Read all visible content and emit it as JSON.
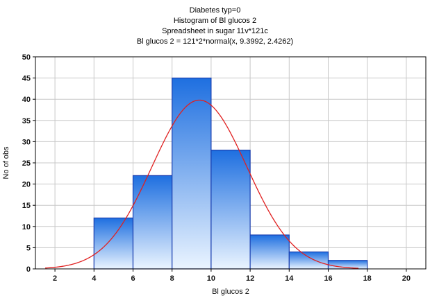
{
  "titles": {
    "line1": "Diabetes typ=0",
    "line2": "Histogram of Bl glucos 2",
    "line3": "Spreadsheet in sugar 11v*121c",
    "line4": "Bl glucos 2 = 121*2*normal(x, 9.3992, 2.4262)"
  },
  "chart_data": {
    "type": "bar",
    "title": "Histogram of Bl glucos 2",
    "xlabel": "Bl glucos 2",
    "ylabel": "No of obs",
    "bins": [
      {
        "from": 4,
        "to": 6,
        "count": 12
      },
      {
        "from": 6,
        "to": 8,
        "count": 22
      },
      {
        "from": 8,
        "to": 10,
        "count": 45
      },
      {
        "from": 10,
        "to": 12,
        "count": 28
      },
      {
        "from": 12,
        "to": 14,
        "count": 8
      },
      {
        "from": 14,
        "to": 16,
        "count": 4
      },
      {
        "from": 16,
        "to": 18,
        "count": 2
      }
    ],
    "normal_fit": {
      "n": 121,
      "bin_width": 2,
      "mean": 9.3992,
      "sd": 2.4262
    },
    "xlim": [
      1,
      21
    ],
    "ylim": [
      0,
      50
    ],
    "xticks": [
      2,
      4,
      6,
      8,
      10,
      12,
      14,
      16,
      18,
      20
    ],
    "yticks": [
      0,
      5,
      10,
      15,
      20,
      25,
      30,
      35,
      40,
      45,
      50
    ],
    "grid": true,
    "bar_color_top": "#1e6fe0",
    "bar_color_bottom": "#eaf4ff",
    "bar_edge_color": "#1a3fb0",
    "curve_color": "#e02020",
    "grid_color": "#c8c8c8"
  }
}
